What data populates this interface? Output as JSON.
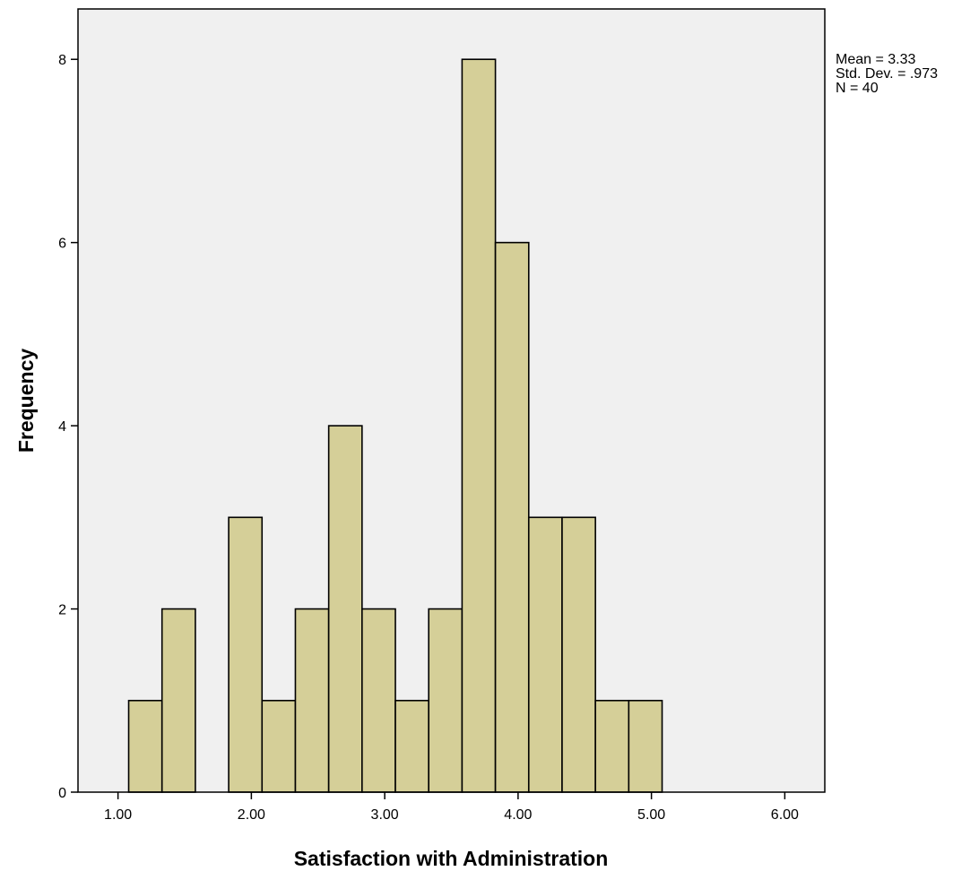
{
  "chart_data": {
    "type": "bar",
    "xlabel": "Satisfaction with Administration",
    "ylabel": "Frequency",
    "xlim": [
      0.7,
      6.3
    ],
    "ylim": [
      0,
      8.55
    ],
    "x_ticks": [
      1,
      2,
      3,
      4,
      5,
      6
    ],
    "x_tick_labels": [
      "1.00",
      "2.00",
      "3.00",
      "4.00",
      "5.00",
      "6.00"
    ],
    "y_ticks": [
      0,
      2,
      4,
      6,
      8
    ],
    "y_tick_labels": [
      "0",
      "2",
      "4",
      "6",
      "8"
    ],
    "bins": [
      {
        "start": 1.08,
        "end": 1.33,
        "count": 1
      },
      {
        "start": 1.33,
        "end": 1.58,
        "count": 2
      },
      {
        "start": 1.58,
        "end": 1.83,
        "count": 0
      },
      {
        "start": 1.83,
        "end": 2.08,
        "count": 3
      },
      {
        "start": 2.08,
        "end": 2.33,
        "count": 1
      },
      {
        "start": 2.33,
        "end": 2.58,
        "count": 2
      },
      {
        "start": 2.58,
        "end": 2.83,
        "count": 4
      },
      {
        "start": 2.83,
        "end": 3.08,
        "count": 2
      },
      {
        "start": 3.08,
        "end": 3.33,
        "count": 1
      },
      {
        "start": 3.33,
        "end": 3.58,
        "count": 2
      },
      {
        "start": 3.58,
        "end": 3.83,
        "count": 8
      },
      {
        "start": 3.83,
        "end": 4.08,
        "count": 6
      },
      {
        "start": 4.08,
        "end": 4.33,
        "count": 3
      },
      {
        "start": 4.33,
        "end": 4.58,
        "count": 3
      },
      {
        "start": 4.58,
        "end": 4.83,
        "count": 1
      },
      {
        "start": 4.83,
        "end": 5.08,
        "count": 1
      }
    ],
    "stats": [
      "Mean = 3.33",
      "Std. Dev. = .973",
      "N = 40"
    ],
    "grid": false,
    "legend": "none",
    "colors": {
      "bar_fill": "#d5cf98",
      "bar_stroke": "#000000",
      "plot_background": "#f0f0f0",
      "frame": "#000000"
    }
  }
}
